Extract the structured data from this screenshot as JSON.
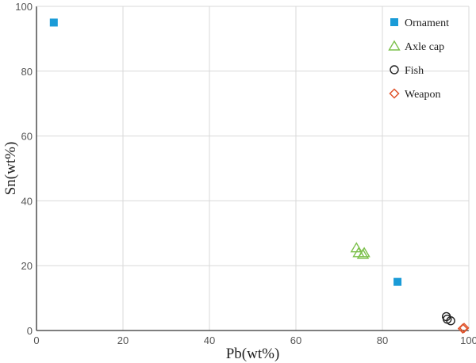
{
  "chart_data": {
    "type": "scatter",
    "xlabel": "Pb(wt%)",
    "ylabel": "Sn(wt%)",
    "xlim": [
      0,
      100
    ],
    "ylim": [
      0,
      100
    ],
    "xticks": [
      0,
      20,
      40,
      60,
      80,
      100
    ],
    "yticks": [
      0,
      20,
      40,
      60,
      80,
      100
    ],
    "grid": true,
    "legend_position": "top-right",
    "series": [
      {
        "name": "Ornament",
        "marker": "filled-square",
        "color": "#1a9bd7",
        "points": [
          {
            "x": 4,
            "y": 95
          },
          {
            "x": 83.5,
            "y": 15
          }
        ]
      },
      {
        "name": "Axle cap",
        "marker": "open-triangle",
        "color": "#7cc04b",
        "points": [
          {
            "x": 74,
            "y": 25.5
          },
          {
            "x": 74.5,
            "y": 24
          },
          {
            "x": 75.5,
            "y": 23.5
          },
          {
            "x": 75.8,
            "y": 24
          }
        ]
      },
      {
        "name": "Fish",
        "marker": "open-circle",
        "color": "#222222",
        "points": [
          {
            "x": 94.8,
            "y": 4.3
          },
          {
            "x": 95,
            "y": 3.5
          },
          {
            "x": 95.8,
            "y": 3
          }
        ]
      },
      {
        "name": "Weapon",
        "marker": "open-diamond",
        "color": "#e0532b",
        "points": [
          {
            "x": 98.6,
            "y": 0.6
          },
          {
            "x": 98.9,
            "y": 0.8
          }
        ]
      }
    ]
  }
}
